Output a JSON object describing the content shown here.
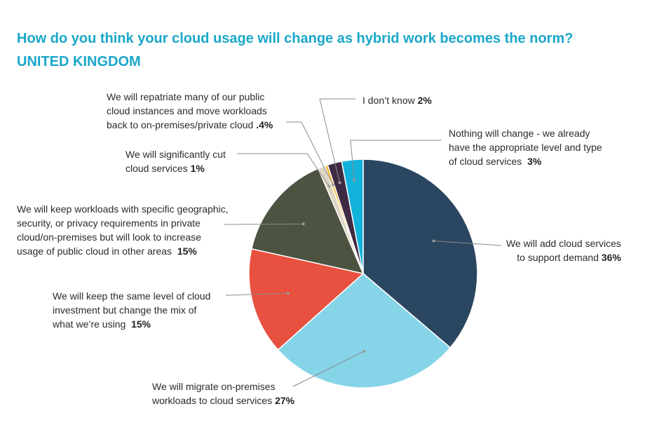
{
  "title": "How do you think your cloud usage will change as hybrid work becomes the norm?",
  "subtitle": "UNITED KINGDOM",
  "chart_data": {
    "type": "pie",
    "title": "How do you think your cloud usage will change as hybrid work becomes the norm?",
    "subtitle": "UNITED KINGDOM",
    "slices": [
      {
        "label": "We will add cloud services to support demand",
        "value": 36,
        "display": "36%",
        "color": "#2b4660"
      },
      {
        "label": "We will migrate on-premises workloads to cloud services",
        "value": 27,
        "display": "27%",
        "color": "#86d4e8"
      },
      {
        "label": "We will keep the same level of cloud investment but change the mix of what we’re using",
        "value": 15,
        "display": "15%",
        "color": "#e8503f"
      },
      {
        "label": "We will keep workloads with specific geographic, security, or privacy requirements in private cloud/on-premises but will look to increase usage of public cloud in other areas",
        "value": 15,
        "display": "15%",
        "color": "#4c5441"
      },
      {
        "label": "We will significantly cut cloud services",
        "value": 1,
        "display": "1%",
        "color": "#ddd4c2"
      },
      {
        "label": "We will repatriate many of our public cloud instances and move workloads back to on-premises/private cloud",
        "value": 0.4,
        "display": ".4%",
        "color": "#f5b324"
      },
      {
        "label": "I don’t know",
        "value": 2,
        "display": "2%",
        "color": "#3f2a44"
      },
      {
        "label": "Nothing will change - we already have the appropriate level and type of cloud services",
        "value": 3,
        "display": "3%",
        "color": "#12b3db"
      }
    ]
  },
  "labels": {
    "add": {
      "lines": [
        "We will add cloud services",
        "to support demand"
      ],
      "pct": "36%"
    },
    "migrate": {
      "lines": [
        "We will migrate on-premises",
        "workloads to cloud services"
      ],
      "pct": "27%"
    },
    "same": {
      "lines": [
        "We will keep the same level of cloud",
        "investment but change the mix of",
        "what we’re using"
      ],
      "pct": "15%"
    },
    "keep": {
      "lines": [
        "We will keep workloads with specific geographic,",
        "security, or privacy requirements in private",
        "cloud/on-premises but will look to increase",
        "usage of public cloud in other areas"
      ],
      "pct": "15%"
    },
    "cut": {
      "lines": [
        "We will significantly cut",
        "cloud services"
      ],
      "pct": "1%"
    },
    "repatriate": {
      "lines": [
        "We will repatriate many of our public",
        "cloud instances and move workloads",
        "back to on-premises/private cloud"
      ],
      "pct": ".4%"
    },
    "dontknow": {
      "lines": [
        "I don’t know"
      ],
      "pct": "2%"
    },
    "nochange": {
      "lines": [
        "Nothing will change - we already",
        "have the appropriate level and type",
        "of cloud services"
      ],
      "pct": "3%"
    }
  }
}
